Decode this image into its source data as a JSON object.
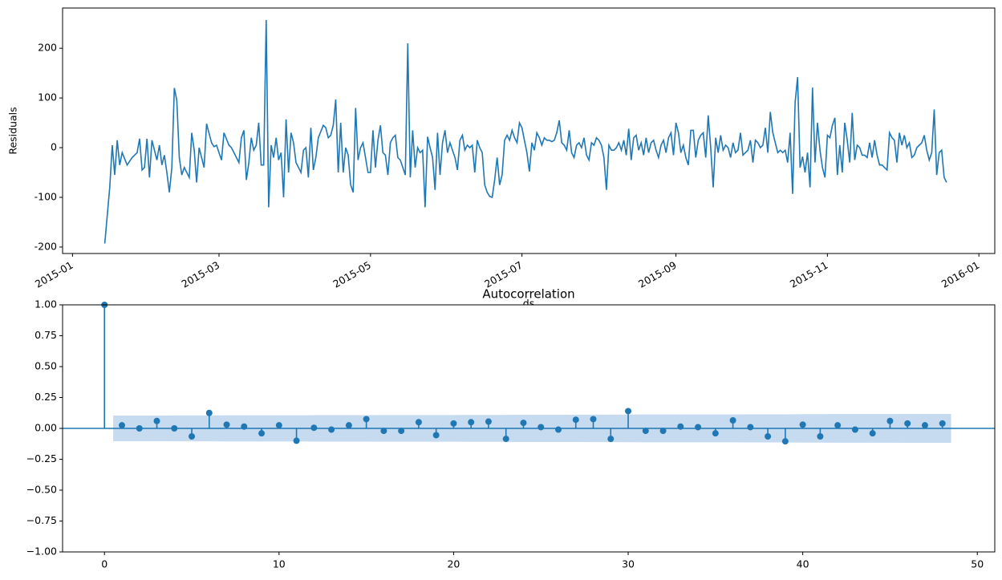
{
  "chart_data": [
    {
      "type": "line",
      "ylabel": "Residuals",
      "xlabel": "ds",
      "color": "#1f77b4",
      "xlim": [
        -4,
        371.4
      ],
      "ylim": [
        -213,
        281
      ],
      "xticks": [
        {
          "value": 0,
          "label": "2015-01"
        },
        {
          "value": 59,
          "label": "2015-03"
        },
        {
          "value": 120,
          "label": "2015-05"
        },
        {
          "value": 181,
          "label": "2015-07"
        },
        {
          "value": 243,
          "label": "2015-09"
        },
        {
          "value": 304,
          "label": "2015-11"
        },
        {
          "value": 365,
          "label": "2016-01"
        }
      ],
      "yticks": [
        -200,
        -100,
        0,
        100,
        200
      ],
      "x": [
        13,
        15,
        16,
        17,
        18,
        19,
        20,
        22,
        24,
        26,
        27,
        28,
        29,
        30,
        31,
        32,
        34,
        35,
        36,
        37,
        38,
        39,
        40,
        41,
        42,
        43,
        44,
        45,
        47,
        48,
        49,
        50,
        51,
        53,
        54,
        56,
        57,
        58,
        60,
        61,
        63,
        64,
        66,
        67,
        68,
        69,
        70,
        71,
        72,
        73,
        74,
        75,
        76,
        77,
        78,
        79,
        80,
        81,
        82,
        83,
        84,
        85,
        86,
        87,
        88,
        89,
        90,
        92,
        93,
        94,
        95,
        96,
        97,
        98,
        99,
        101,
        102,
        103,
        104,
        105,
        106,
        107,
        108,
        109,
        110,
        111,
        112,
        113,
        114,
        115,
        116,
        117,
        118,
        119,
        120,
        121,
        122,
        123,
        124,
        125,
        126,
        127,
        128,
        129,
        130,
        131,
        132,
        133,
        134,
        135,
        136,
        137,
        138,
        139,
        140,
        141,
        142,
        143,
        144,
        145,
        146,
        147,
        148,
        149,
        150,
        151,
        152,
        153,
        154,
        155,
        156,
        157,
        158,
        159,
        160,
        161,
        162,
        163,
        164,
        165,
        166,
        167,
        168,
        169,
        170,
        171,
        172,
        173,
        174,
        175,
        176,
        177,
        178,
        179,
        180,
        181,
        183,
        184,
        185,
        186,
        187,
        188,
        189,
        190,
        191,
        192,
        193,
        194,
        195,
        196,
        197,
        198,
        199,
        200,
        201,
        202,
        203,
        204,
        205,
        206,
        207,
        208,
        209,
        210,
        211,
        212,
        213,
        214,
        215,
        216,
        217,
        218,
        219,
        220,
        221,
        222,
        223,
        224,
        225,
        226,
        227,
        228,
        229,
        230,
        231,
        232,
        233,
        234,
        235,
        236,
        237,
        238,
        239,
        240,
        241,
        242,
        243,
        244,
        245,
        246,
        247,
        248,
        249,
        250,
        251,
        252,
        253,
        254,
        255,
        256,
        257,
        258,
        259,
        260,
        261,
        262,
        263,
        264,
        265,
        266,
        267,
        268,
        269,
        270,
        271,
        272,
        273,
        274,
        275,
        276,
        277,
        278,
        279,
        280,
        281,
        282,
        283,
        284,
        285,
        286,
        287,
        288,
        289,
        290,
        291,
        292,
        293,
        294,
        295,
        296,
        297,
        298,
        299,
        300,
        301,
        302,
        303,
        304,
        305,
        306,
        307,
        308,
        309,
        310,
        311,
        312,
        313,
        314,
        315,
        316,
        317,
        318,
        319,
        320,
        321,
        322,
        323,
        324,
        325,
        326,
        327,
        328,
        329,
        330,
        331,
        332,
        333,
        334,
        335,
        336,
        337,
        338,
        339,
        340,
        341,
        342,
        343,
        344,
        345,
        346,
        347,
        348,
        349,
        350,
        351,
        352
      ],
      "values": [
        -193,
        -80,
        5,
        -55,
        15,
        -35,
        -10,
        -35,
        -20,
        -10,
        18,
        -45,
        -40,
        18,
        -60,
        15,
        -25,
        5,
        -35,
        -15,
        -50,
        -90,
        -40,
        120,
        95,
        -20,
        -55,
        -40,
        -60,
        30,
        -5,
        -70,
        0,
        -40,
        48,
        10,
        2,
        5,
        -25,
        30,
        5,
        0,
        -20,
        -30,
        20,
        35,
        -65,
        -30,
        20,
        -5,
        5,
        50,
        -35,
        -35,
        257,
        -120,
        5,
        -20,
        20,
        -25,
        -10,
        -100,
        57,
        -50,
        30,
        10,
        -30,
        -50,
        -5,
        0,
        -60,
        40,
        -45,
        -20,
        20,
        45,
        40,
        20,
        25,
        45,
        97,
        -50,
        50,
        -50,
        0,
        -15,
        -75,
        -90,
        80,
        -25,
        0,
        10,
        -20,
        -50,
        -50,
        35,
        -40,
        15,
        45,
        -10,
        -15,
        -55,
        10,
        20,
        25,
        -20,
        -25,
        -40,
        -55,
        210,
        -60,
        35,
        -40,
        0,
        -10,
        -5,
        -120,
        22,
        0,
        -20,
        -85,
        30,
        -55,
        10,
        35,
        -10,
        10,
        -5,
        -20,
        -45,
        15,
        25,
        -5,
        5,
        0,
        5,
        -50,
        15,
        0,
        -10,
        -75,
        -90,
        -98,
        -100,
        -65,
        -20,
        -75,
        -55,
        15,
        25,
        15,
        35,
        20,
        10,
        50,
        40,
        -10,
        -48,
        10,
        -5,
        30,
        20,
        5,
        20,
        15,
        15,
        12,
        15,
        30,
        55,
        10,
        5,
        -5,
        35,
        -10,
        -20,
        5,
        10,
        0,
        20,
        -15,
        -25,
        10,
        5,
        20,
        15,
        5,
        -20,
        -85,
        5,
        -5,
        -5,
        0,
        10,
        -5,
        15,
        -15,
        38,
        -25,
        20,
        25,
        -5,
        10,
        -15,
        20,
        -10,
        10,
        15,
        -5,
        -20,
        5,
        15,
        -10,
        20,
        30,
        -15,
        50,
        30,
        -10,
        5,
        -20,
        -35,
        35,
        35,
        -20,
        15,
        25,
        30,
        -20,
        65,
        0,
        -80,
        20,
        -10,
        25,
        -5,
        5,
        0,
        -20,
        10,
        -10,
        -5,
        30,
        -15,
        -10,
        -5,
        15,
        -30,
        15,
        10,
        0,
        5,
        40,
        -10,
        72,
        30,
        10,
        -10,
        -5,
        -10,
        -5,
        -30,
        30,
        -93,
        90,
        142,
        -40,
        -18,
        -50,
        -10,
        -80,
        121,
        -30,
        50,
        -5,
        -40,
        -60,
        25,
        20,
        45,
        60,
        -55,
        5,
        -50,
        50,
        15,
        -30,
        70,
        -25,
        5,
        0,
        -15,
        -15,
        -20,
        10,
        -20,
        15,
        -15,
        -35,
        -35,
        -40,
        -45,
        30,
        20,
        15,
        -30,
        30,
        5,
        25,
        0,
        10,
        -20,
        -15,
        0,
        5,
        10,
        25,
        -5,
        -25,
        -10,
        77,
        -55,
        -10,
        -5,
        -60,
        -70
      ]
    },
    {
      "type": "stem",
      "title": "Autocorrelation",
      "color": "#1f77b4",
      "band_color": "#c6dbef",
      "xlim": [
        -2.4,
        51
      ],
      "ylim": [
        -1,
        1
      ],
      "xticks": [
        0,
        10,
        20,
        30,
        40,
        50
      ],
      "yticks": [
        {
          "value": -1,
          "label": "−1.00"
        },
        {
          "value": -0.75,
          "label": "−0.75"
        },
        {
          "value": -0.5,
          "label": "−0.50"
        },
        {
          "value": -0.25,
          "label": "−0.25"
        },
        {
          "value": 0,
          "label": "0.00"
        },
        {
          "value": 0.25,
          "label": "0.25"
        },
        {
          "value": 0.5,
          "label": "0.50"
        },
        {
          "value": 0.75,
          "label": "0.75"
        },
        {
          "value": 1,
          "label": "1.00"
        }
      ],
      "x": [
        0,
        1,
        2,
        3,
        4,
        5,
        6,
        7,
        8,
        9,
        10,
        11,
        12,
        13,
        14,
        15,
        16,
        17,
        18,
        19,
        20,
        21,
        22,
        23,
        24,
        25,
        26,
        27,
        28,
        29,
        30,
        31,
        32,
        33,
        34,
        35,
        36,
        37,
        38,
        39,
        40,
        41,
        42,
        43,
        44,
        45,
        46,
        47,
        48
      ],
      "values": [
        1.0,
        0.025,
        0.0,
        0.06,
        0.0,
        -0.065,
        0.125,
        0.03,
        0.015,
        -0.04,
        0.025,
        -0.1,
        0.005,
        -0.01,
        0.025,
        0.075,
        -0.02,
        -0.02,
        0.05,
        -0.055,
        0.04,
        0.05,
        0.055,
        -0.085,
        0.045,
        0.01,
        -0.01,
        0.07,
        0.075,
        -0.085,
        0.14,
        -0.02,
        -0.02,
        0.015,
        0.01,
        -0.04,
        0.065,
        0.01,
        -0.065,
        -0.105,
        0.03,
        -0.065,
        0.025,
        -0.01,
        -0.04,
        0.06,
        0.04,
        0.025,
        0.04
      ],
      "confint": [
        null,
        0.104,
        0.104,
        0.104,
        0.105,
        0.105,
        0.105,
        0.106,
        0.106,
        0.106,
        0.106,
        0.106,
        0.107,
        0.107,
        0.107,
        0.107,
        0.108,
        0.108,
        0.108,
        0.108,
        0.108,
        0.109,
        0.109,
        0.109,
        0.11,
        0.11,
        0.11,
        0.11,
        0.111,
        0.111,
        0.112,
        0.113,
        0.113,
        0.113,
        0.113,
        0.113,
        0.113,
        0.114,
        0.114,
        0.114,
        0.115,
        0.115,
        0.116,
        0.116,
        0.116,
        0.116,
        0.117,
        0.117,
        0.117
      ]
    }
  ]
}
